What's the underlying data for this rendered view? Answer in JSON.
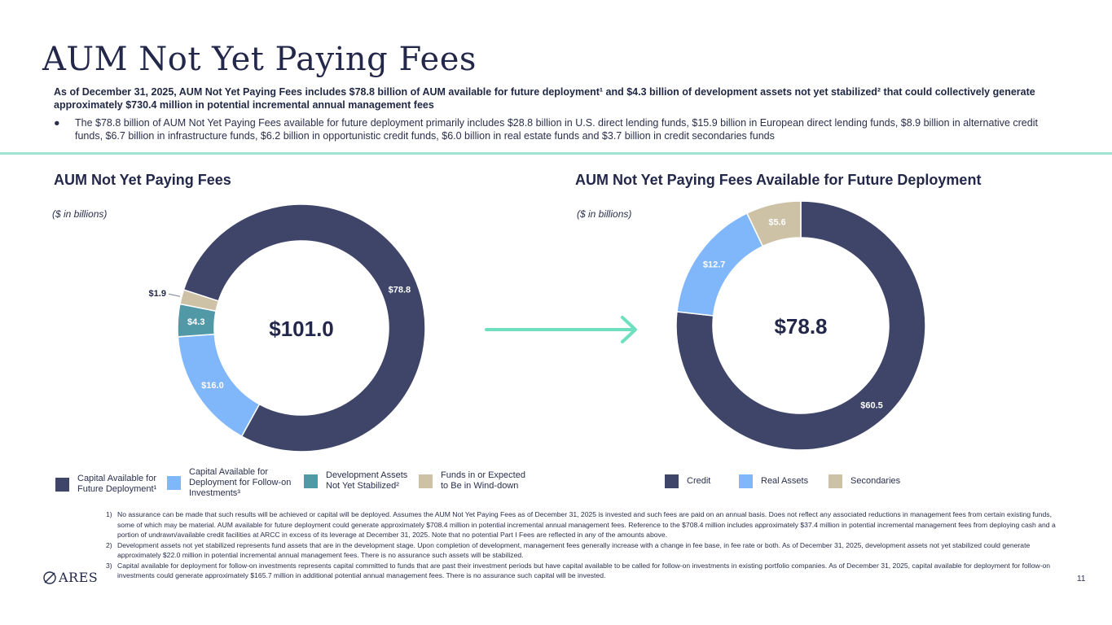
{
  "page": {
    "title": "AUM Not Yet Paying Fees",
    "intro": "As of December 31, 2025, AUM Not Yet Paying Fees includes $78.8 billion of AUM available for future deployment¹ and $4.3 billion of development assets not yet stabilized² that could collectively generate approximately $730.4 million in potential incremental annual management fees",
    "bullet": "The $78.8 billion of AUM Not Yet Paying Fees available for future deployment primarily includes $28.8 billion in U.S. direct lending funds, $15.9 billion in European direct lending funds, $8.9 billion in alternative credit funds, $6.7 billion in infrastructure funds, $6.2 billion in opportunistic credit funds, $6.0 billion in real estate funds and $3.7 billion in credit secondaries funds",
    "bullet_marker": "●",
    "footnotes": [
      {
        "n": "1)",
        "text": "No assurance can be made that such results will be achieved or capital will be deployed. Assumes the AUM Not Yet Paying Fees as of December 31, 2025 is invested and such fees are paid on an annual basis. Does not reflect any associated reductions in management fees from certain existing funds, some of which may be material. AUM available for future deployment could generate approximately $708.4 million in potential incremental annual management fees. Reference to the $708.4 million includes approximately $37.4 million in potential incremental management fees from deploying cash and a portion of undrawn/available credit facilities at ARCC in excess of its leverage at December 31, 2025. Note that no potential Part I Fees are reflected in any of the amounts above."
      },
      {
        "n": "2)",
        "text": "Development assets not yet stabilized represents fund assets that are in the development stage. Upon completion of development, management fees generally increase with a change in fee base, in fee rate or both. As of December 31, 2025, development assets not yet stabilized could generate approximately $22.0 million in potential incremental annual management fees. There is no assurance such assets will be stabilized."
      },
      {
        "n": "3)",
        "text": "Capital available for deployment for follow-on investments represents capital committed to funds that are past their investment periods but have capital available to be called for follow-on investments in existing portfolio companies. As of December 31, 2025, capital available for deployment for follow-on investments could generate approximately $165.7 million in additional potential annual management fees. There is no assurance such capital will be invested."
      }
    ],
    "logo_text": "ARES",
    "page_number": "11"
  },
  "colors": {
    "navy": "#3f4568",
    "light_blue": "#80b7fb",
    "teal": "#5299a8",
    "tan": "#cdc1a6",
    "arrow": "#6fe0bf"
  },
  "chart_data": [
    {
      "type": "pie",
      "subtype": "donut",
      "title": "AUM Not Yet Paying Fees",
      "unit_note": "($ in billions)",
      "center_label": "$101.0",
      "categories": [
        "Capital Available for Future Deployment¹",
        "Capital Available for Deployment for Follow-on Investments³",
        "Development Assets Not Yet Stabilized²",
        "Funds in or Expected to Be in Wind-down"
      ],
      "values": [
        78.8,
        16.0,
        4.3,
        1.9
      ],
      "labels": [
        "$78.8",
        "$16.0",
        "$4.3",
        "$1.9"
      ],
      "colors": [
        "#3f4568",
        "#80b7fb",
        "#5299a8",
        "#cdc1a6"
      ],
      "legend": "bottom"
    },
    {
      "type": "pie",
      "subtype": "donut",
      "title": "AUM Not Yet Paying Fees Available for Future Deployment",
      "unit_note": "($ in billions)",
      "center_label": "$78.8",
      "categories": [
        "Credit",
        "Real Assets",
        "Secondaries"
      ],
      "values": [
        60.5,
        12.7,
        5.6
      ],
      "labels": [
        "$60.5",
        "$12.7",
        "$5.6"
      ],
      "colors": [
        "#3f4568",
        "#80b7fb",
        "#cdc1a6"
      ],
      "legend": "bottom"
    }
  ]
}
